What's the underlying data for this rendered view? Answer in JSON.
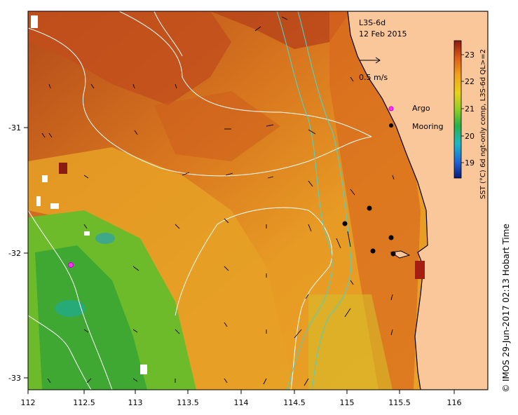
{
  "product": "L3S-6d",
  "date": "12 Feb 2015",
  "scale_label": "0.5 m/s",
  "legend": {
    "argo_label": "Argo",
    "mooring_label": "Mooring"
  },
  "colorbar": {
    "title": "SST (°C) 6d ngt-only comp, L3S-6d QL>=2",
    "ticks": [
      "19",
      "20",
      "21",
      "22",
      "23"
    ]
  },
  "credit": "© IMOS 29-Jun-2017 02:13 Hobart Time",
  "axes": {
    "x_ticks": [
      "112",
      "112.5",
      "113",
      "113.5",
      "114",
      "114.5",
      "115",
      "115.5",
      "116"
    ],
    "y_ticks": [
      "-31",
      "-32",
      "-33"
    ]
  },
  "colors": {
    "land": "#F9C79A",
    "sst_warm": "#C8461A",
    "sst_mid": "#E89A22",
    "sst_cool": "#58B02A",
    "argo": "#FF33FF",
    "mooring": "#000000",
    "contour": "#FFFFFF",
    "bathy": "#4FD1C5"
  },
  "chart_data": {
    "type": "map",
    "xlim": [
      112,
      116.3
    ],
    "ylim": [
      -33.1,
      -30.1
    ],
    "argo": [
      {
        "lon": 112.4,
        "lat": -32.09
      }
    ],
    "moorings": [
      {
        "lon": 115.2,
        "lat": -31.65
      },
      {
        "lon": 114.98,
        "lat": -31.76
      },
      {
        "lon": 115.42,
        "lat": -31.9
      },
      {
        "lon": 115.25,
        "lat": -31.99
      },
      {
        "lon": 115.4,
        "lat": -32.0
      }
    ]
  }
}
